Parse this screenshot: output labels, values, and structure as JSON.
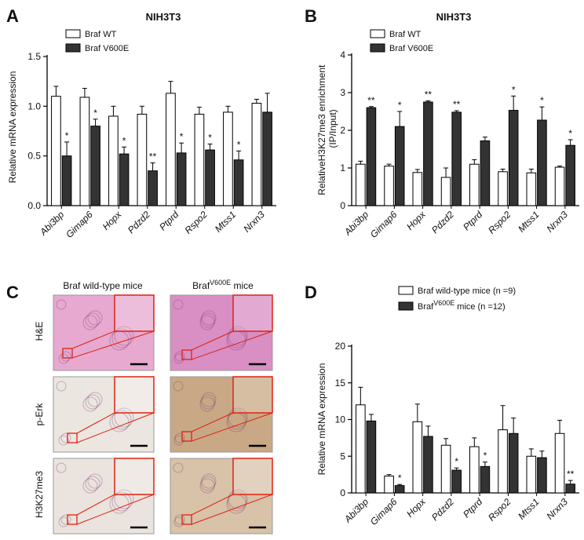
{
  "chart_data": [
    {
      "panel": "A",
      "type": "bar",
      "title": "NIH3T3",
      "ylabel": "Relative mRNA expression",
      "ylim": [
        0,
        1.5
      ],
      "yticks": [
        "0.0",
        "0.5",
        "1.0",
        "1.5"
      ],
      "categories": [
        "Abi3bp",
        "Gimap6",
        "Hopx",
        "Pdzd2",
        "Ptprd",
        "Rspo2",
        "Mtss1",
        "Nrxn3"
      ],
      "series": [
        {
          "name": "Braf WT",
          "color": "#ffffff",
          "values": [
            1.1,
            1.09,
            0.9,
            0.92,
            1.13,
            0.92,
            0.94,
            1.03
          ],
          "errors": [
            0.1,
            0.09,
            0.1,
            0.08,
            0.12,
            0.07,
            0.06,
            0.04
          ]
        },
        {
          "name": "Braf V600E",
          "color": "#333333",
          "values": [
            0.5,
            0.8,
            0.52,
            0.35,
            0.53,
            0.56,
            0.46,
            0.94
          ],
          "errors": [
            0.14,
            0.07,
            0.07,
            0.08,
            0.1,
            0.06,
            0.09,
            0.19
          ]
        }
      ],
      "significance": [
        "*",
        "*",
        "*",
        "**",
        "*",
        "*",
        "*",
        ""
      ]
    },
    {
      "panel": "B",
      "type": "bar",
      "title": "NIH3T3",
      "ylabel": "RelativeH3K27me3 enrichment\n(IP/Input)",
      "ylim": [
        0,
        4
      ],
      "yticks": [
        "0",
        "1",
        "2",
        "3",
        "4"
      ],
      "categories": [
        "Abi3bp",
        "Gimap6",
        "Hopx",
        "Pdzd2",
        "Ptprd",
        "Rspo2",
        "Mtss1",
        "Nrxn3"
      ],
      "series": [
        {
          "name": "Braf WT",
          "color": "#ffffff",
          "values": [
            1.1,
            1.05,
            0.88,
            0.75,
            1.1,
            0.9,
            0.87,
            1.02
          ],
          "errors": [
            0.08,
            0.05,
            0.08,
            0.25,
            0.12,
            0.07,
            0.1,
            0.03
          ]
        },
        {
          "name": "Braf V600E",
          "color": "#333333",
          "values": [
            2.6,
            2.1,
            2.75,
            2.48,
            1.72,
            2.53,
            2.27,
            1.6
          ],
          "errors": [
            0.03,
            0.4,
            0.03,
            0.04,
            0.1,
            0.38,
            0.35,
            0.15
          ]
        }
      ],
      "significance": [
        "**",
        "*",
        "**",
        "**",
        "",
        "*",
        "*",
        "*"
      ]
    },
    {
      "panel": "D",
      "type": "bar",
      "title": "",
      "ylabel": "Relative mRNA expression",
      "ylim": [
        0,
        20
      ],
      "yticks": [
        "0",
        "5",
        "10",
        "15",
        "20"
      ],
      "categories": [
        "Abi3bp",
        "Gimap6",
        "Hopx",
        "Pdzd2",
        "Ptprd",
        "Rspo2",
        "Mtss1",
        "Nrxn3"
      ],
      "series": [
        {
          "name": "Braf wild-type mice (n =9)",
          "color": "#ffffff",
          "values": [
            12.0,
            2.3,
            9.7,
            6.5,
            6.3,
            8.6,
            5.0,
            8.1
          ],
          "errors": [
            2.4,
            0.2,
            2.4,
            0.9,
            1.2,
            3.3,
            1.0,
            1.8
          ]
        },
        {
          "name": "Braf V600E mice (n =12)",
          "color": "#333333",
          "values": [
            9.8,
            1.0,
            7.7,
            3.1,
            3.6,
            8.1,
            4.8,
            1.2
          ],
          "errors": [
            0.9,
            0.15,
            1.4,
            0.3,
            0.6,
            2.1,
            0.9,
            0.5
          ]
        }
      ],
      "significance": [
        "",
        "*",
        "",
        "*",
        "*",
        "",
        "",
        "**"
      ]
    }
  ],
  "panels": {
    "a": "A",
    "b": "B",
    "c": "C",
    "d": "D"
  },
  "legend_ab": {
    "wt": "Braf WT",
    "mut": "Braf V600E"
  },
  "legend_d": {
    "wt": "Braf wild-type mice (n =9)",
    "mut_prefix": "Braf",
    "mut_sup": "V600E",
    "mut_suffix": " mice (n =12)"
  },
  "panel_c": {
    "col_wt": "Braf wild-type mice",
    "col_mut_prefix": "Braf",
    "col_mut_sup": "V600E",
    "col_mut_suffix": " mice",
    "rows": [
      "H&E",
      "p-Erk",
      "H3K27me3"
    ],
    "tile_colors": {
      "he_wt": "#e7a9cf",
      "he_mut": "#d98ec4",
      "perk_wt": "#ece6e0",
      "perk_mut": "#c9a885",
      "h3_wt": "#ebe3de",
      "h3_mut": "#d8c2a8"
    }
  }
}
